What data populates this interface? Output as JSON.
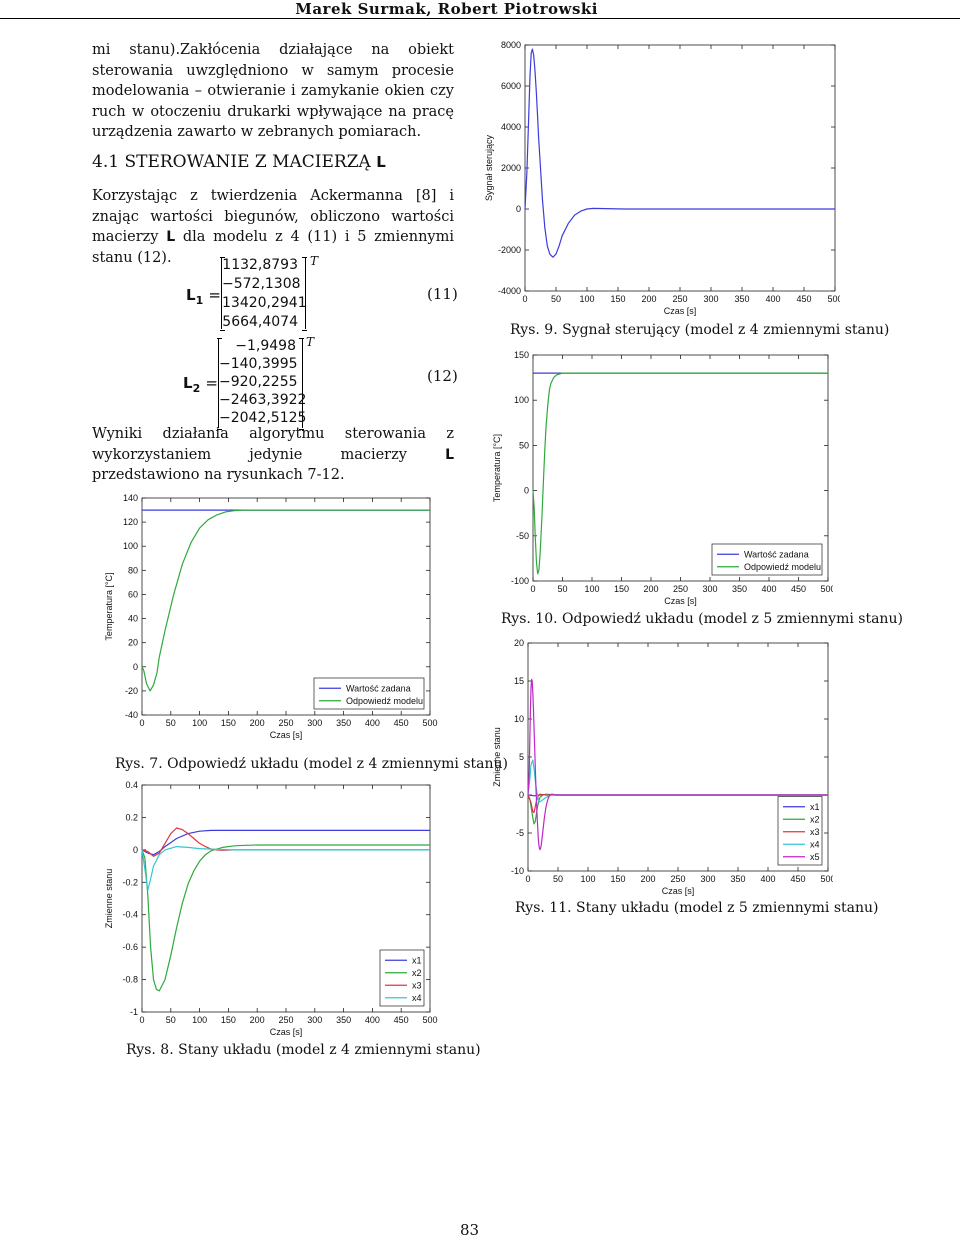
{
  "header": {
    "authors": "Marek Surmak, Robert Piotrowski"
  },
  "text": {
    "para1": "mi stanu).Zakłócenia działające na obiekt sterowania uwzględniono w samym procesie modelowania – otwieranie i zamykanie okien czy ruch w otoczeniu drukarki wpływające na pracę urządzenia zawarto w zebranych pomiarach.",
    "section_num": "4.1",
    "section_title": "STEROWANIE Z MACIERZĄ",
    "section_symbol": "L",
    "para2_a": "Korzystając z twierdzenia Ackermanna [8] i znając wartości biegunów, obliczono wartości macierzy",
    "para2_sym": "L",
    "para2_b": "dla modelu z 4 (11) i 5 zmiennymi stanu (12).",
    "para3_a": "Wyniki działania algorytmu sterowania z wykorzystaniem jedynie macierzy",
    "para3_sym": "L",
    "para3_b": "przedstawiono na rysunkach 7-12."
  },
  "equations": {
    "eq11": {
      "label": "L",
      "sub": "1",
      "sup": "T",
      "values": [
        "1132,8793",
        "−572,1308",
        "13420,2941",
        "5664,4074"
      ],
      "number": "(11)"
    },
    "eq12": {
      "label": "L",
      "sub": "2",
      "sup": "T",
      "values": [
        "−1,9498",
        "−140,3995",
        "−920,2255",
        "−2463,3922",
        "−2042,5125"
      ],
      "number": "(12)"
    }
  },
  "captions": {
    "fig7": "Rys. 7. Odpowiedź układu (model z 4 zmiennymi stanu)",
    "fig8": "Rys. 8. Stany układu (model z 4 zmiennymi stanu)",
    "fig9": "Rys. 9. Sygnał sterujący (model z 4 zmiennymi stanu)",
    "fig10": "Rys. 10. Odpowiedź układu (model z 5 zmiennymi stanu)",
    "fig11": "Rys. 11. Stany układu (model z 5 zmiennymi stanu)"
  },
  "page_number": "83",
  "colors": {
    "blue": "#3c3cdc",
    "green": "#2eaa3c",
    "red": "#e0343c",
    "cyan": "#30c8d0",
    "magenta": "#c026c8"
  },
  "chart_data": [
    {
      "id": "fig7",
      "type": "line",
      "xlabel": "Czas [s]",
      "ylabel": "Temperatura [°C]",
      "xlim": [
        0,
        500
      ],
      "ylim": [
        -40,
        140
      ],
      "xticks": [
        0,
        50,
        100,
        150,
        200,
        250,
        300,
        350,
        400,
        450,
        500
      ],
      "yticks": [
        -40,
        -20,
        0,
        20,
        40,
        60,
        80,
        100,
        120,
        140
      ],
      "legend": {
        "position": "bottom-right",
        "entries": [
          "Wartość zadana",
          "Odpowiedź modelu"
        ]
      },
      "series": [
        {
          "name": "Wartość zadana",
          "color": "blue",
          "x": [
            0,
            500
          ],
          "y": [
            130,
            130
          ]
        },
        {
          "name": "Odpowiedź modelu",
          "color": "green",
          "x": [
            0,
            3,
            8,
            14,
            20,
            26,
            30,
            40,
            55,
            70,
            85,
            100,
            115,
            130,
            145,
            160,
            175,
            190,
            210,
            240,
            300,
            500
          ],
          "y": [
            0,
            -3,
            -14,
            -20,
            -15,
            -5,
            8,
            30,
            60,
            85,
            103,
            115,
            122,
            126,
            128.5,
            129.5,
            130,
            130,
            130,
            130,
            130,
            130
          ]
        }
      ]
    },
    {
      "id": "fig8",
      "type": "line",
      "xlabel": "Czas [s]",
      "ylabel": "Zmienne stanu",
      "xlim": [
        0,
        500
      ],
      "ylim": [
        -1,
        0.4
      ],
      "xticks": [
        0,
        50,
        100,
        150,
        200,
        250,
        300,
        350,
        400,
        450,
        500
      ],
      "yticks": [
        -1,
        -0.8,
        -0.6,
        -0.4,
        -0.2,
        0,
        0.2,
        0.4
      ],
      "legend": {
        "position": "bottom-right",
        "entries": [
          "x1",
          "x2",
          "x3",
          "x4"
        ]
      },
      "series": [
        {
          "name": "x1",
          "color": "blue",
          "x": [
            0,
            10,
            20,
            30,
            40,
            60,
            80,
            100,
            120,
            140,
            500
          ],
          "y": [
            0,
            -0.02,
            -0.03,
            -0.01,
            0.02,
            0.07,
            0.1,
            0.115,
            0.12,
            0.12,
            0.12
          ]
        },
        {
          "name": "x2",
          "color": "green",
          "x": [
            0,
            5,
            10,
            15,
            20,
            25,
            30,
            40,
            50,
            60,
            70,
            80,
            90,
            100,
            110,
            120,
            140,
            160,
            180,
            200,
            230,
            260,
            300,
            500
          ],
          "y": [
            0,
            -0.05,
            -0.28,
            -0.6,
            -0.8,
            -0.86,
            -0.87,
            -0.8,
            -0.65,
            -0.48,
            -0.33,
            -0.21,
            -0.13,
            -0.07,
            -0.03,
            -0.005,
            0.015,
            0.025,
            0.028,
            0.03,
            0.03,
            0.03,
            0.03,
            0.03
          ]
        },
        {
          "name": "x3",
          "color": "red",
          "x": [
            0,
            10,
            20,
            30,
            40,
            50,
            60,
            70,
            80,
            90,
            100,
            110,
            120,
            130,
            140,
            160,
            180,
            200,
            500
          ],
          "y": [
            0,
            -0.01,
            -0.04,
            -0.02,
            0.04,
            0.1,
            0.135,
            0.125,
            0.1,
            0.07,
            0.04,
            0.02,
            0.005,
            0,
            -0.003,
            0,
            0,
            0,
            0
          ]
        },
        {
          "name": "x4",
          "color": "cyan",
          "x": [
            0,
            5,
            10,
            15,
            20,
            30,
            40,
            60,
            80,
            100,
            130,
            160,
            200,
            500
          ],
          "y": [
            0,
            -0.12,
            -0.25,
            -0.18,
            -0.1,
            -0.03,
            0,
            0.02,
            0.015,
            0.008,
            0.003,
            0,
            0,
            0
          ]
        }
      ]
    },
    {
      "id": "fig9",
      "type": "line",
      "xlabel": "Czas [s]",
      "ylabel": "Sygnał sterujący",
      "xlim": [
        0,
        500
      ],
      "ylim": [
        -4000,
        8000
      ],
      "xticks": [
        0,
        50,
        100,
        150,
        200,
        250,
        300,
        350,
        400,
        450,
        500
      ],
      "yticks": [
        -4000,
        -2000,
        0,
        2000,
        4000,
        6000,
        8000
      ],
      "series": [
        {
          "name": "",
          "color": "blue",
          "x": [
            0,
            3,
            6,
            8,
            10,
            12,
            14,
            16,
            18,
            20,
            22,
            25,
            28,
            32,
            36,
            40,
            45,
            50,
            55,
            60,
            70,
            80,
            90,
            100,
            110,
            130,
            160,
            200,
            500
          ],
          "y": [
            0,
            1800,
            4500,
            6500,
            7600,
            7800,
            7500,
            6800,
            5800,
            4700,
            3500,
            2000,
            500,
            -900,
            -1800,
            -2200,
            -2350,
            -2200,
            -1800,
            -1300,
            -700,
            -300,
            -100,
            0,
            30,
            20,
            0,
            0,
            0
          ]
        }
      ]
    },
    {
      "id": "fig10",
      "type": "line",
      "xlabel": "Czas [s]",
      "ylabel": "Temperatura [°C]",
      "xlim": [
        0,
        500
      ],
      "ylim": [
        -100,
        150
      ],
      "xticks": [
        0,
        50,
        100,
        150,
        200,
        250,
        300,
        350,
        400,
        450,
        500
      ],
      "yticks": [
        -100,
        -50,
        0,
        50,
        100,
        150
      ],
      "legend": {
        "position": "bottom-right",
        "entries": [
          "Wartość zadana",
          "Odpowiedź modelu"
        ]
      },
      "series": [
        {
          "name": "Wartość zadana",
          "color": "blue",
          "x": [
            0,
            500
          ],
          "y": [
            130,
            130
          ]
        },
        {
          "name": "Odpowiedź modelu",
          "color": "green",
          "x": [
            0,
            2,
            4,
            6,
            8,
            10,
            12,
            15,
            18,
            20,
            22,
            25,
            28,
            30,
            35,
            40,
            45,
            50,
            55,
            60,
            70,
            500
          ],
          "y": [
            0,
            -20,
            -55,
            -80,
            -92,
            -88,
            -70,
            -30,
            15,
            45,
            70,
            95,
            112,
            118,
            125,
            128,
            129,
            130,
            130,
            130,
            130,
            130
          ]
        }
      ]
    },
    {
      "id": "fig11",
      "type": "line",
      "xlabel": "Czas [s]",
      "ylabel": "Zmienne stanu",
      "xlim": [
        0,
        500
      ],
      "ylim": [
        -10,
        20
      ],
      "xticks": [
        0,
        50,
        100,
        150,
        200,
        250,
        300,
        350,
        400,
        450,
        500
      ],
      "yticks": [
        -10,
        -5,
        0,
        5,
        10,
        15,
        20
      ],
      "legend": {
        "position": "bottom-right",
        "entries": [
          "x1",
          "x2",
          "x3",
          "x4",
          "x5"
        ]
      },
      "series": [
        {
          "name": "x1",
          "color": "blue",
          "x": [
            0,
            10,
            20,
            30,
            40,
            500
          ],
          "y": [
            0,
            -0.1,
            0,
            0.05,
            0,
            0
          ]
        },
        {
          "name": "x2",
          "color": "green",
          "x": [
            0,
            3,
            5,
            8,
            10,
            12,
            14,
            16,
            18,
            20,
            25,
            30,
            40,
            50,
            500
          ],
          "y": [
            0,
            -0.5,
            -1.5,
            -3,
            -3.8,
            -3.5,
            -2.5,
            -1.5,
            -0.8,
            -0.3,
            0,
            0.1,
            0.05,
            0,
            0
          ]
        },
        {
          "name": "x3",
          "color": "red",
          "x": [
            0,
            5,
            8,
            10,
            12,
            14,
            16,
            18,
            20,
            25,
            30,
            40,
            50,
            500
          ],
          "y": [
            0,
            -1,
            -2.2,
            -2.3,
            -1.6,
            -0.8,
            -0.3,
            0,
            0.1,
            0.05,
            0,
            0,
            0,
            0
          ]
        },
        {
          "name": "x4",
          "color": "cyan",
          "x": [
            0,
            3,
            5,
            8,
            10,
            12,
            14,
            16,
            18,
            20,
            25,
            30,
            35,
            40,
            50,
            500
          ],
          "y": [
            0,
            2,
            4,
            4.6,
            3.5,
            2,
            0.8,
            -0.2,
            -0.8,
            -0.9,
            -0.6,
            -0.3,
            -0.1,
            0,
            0,
            0
          ]
        },
        {
          "name": "x5",
          "color": "magenta",
          "x": [
            0,
            2,
            3,
            4,
            5,
            6,
            7,
            8,
            9,
            10,
            11,
            12,
            13,
            14,
            15,
            16,
            17,
            18,
            19,
            20,
            21,
            22,
            23,
            24,
            25,
            26,
            27,
            28,
            29,
            30,
            31,
            32,
            33,
            34,
            35,
            36,
            37,
            38,
            39,
            40,
            41,
            42,
            43,
            44,
            45,
            46,
            47,
            48,
            49,
            50,
            51,
            52,
            53,
            54,
            55,
            56,
            57,
            58,
            59,
            60,
            61,
            62,
            63,
            64,
            65,
            66,
            67,
            68,
            69,
            70,
            71,
            72,
            73,
            74,
            75,
            76,
            77,
            78,
            79,
            80,
            81,
            82,
            83,
            84,
            85,
            86,
            87,
            88,
            89,
            90,
            91,
            92,
            93,
            94,
            95,
            96,
            97,
            98,
            99,
            100,
            500
          ],
          "y": [
            0,
            3,
            7,
            11,
            14,
            15.2,
            15,
            13.5,
            11.5,
            9,
            6.5,
            4,
            1.5,
            -0.5,
            -2.5,
            -4,
            -5.5,
            -6.5,
            -7,
            -7.2,
            -7,
            -6.6,
            -6,
            -5.3,
            -4.6,
            -3.9,
            -3.2,
            -2.6,
            -2.1,
            -1.6,
            -1.2,
            -0.9,
            -0.6,
            -0.4,
            -0.2,
            -0.1,
            0,
            0.05,
            0.1,
            0.1,
            0.1,
            0.08,
            0.06,
            0.04,
            0.02,
            0,
            0,
            0,
            0,
            0,
            0,
            0,
            0,
            0,
            0,
            0,
            0,
            0,
            0,
            0,
            0,
            0,
            0,
            0,
            0,
            0,
            0,
            0,
            0,
            0,
            0,
            0,
            0,
            0,
            0,
            0,
            0,
            0,
            0,
            0,
            0,
            0,
            0,
            0,
            0,
            0,
            0,
            0,
            0,
            0,
            0,
            0,
            0,
            0,
            0,
            0,
            0,
            0,
            0,
            0,
            0
          ]
        }
      ]
    }
  ]
}
